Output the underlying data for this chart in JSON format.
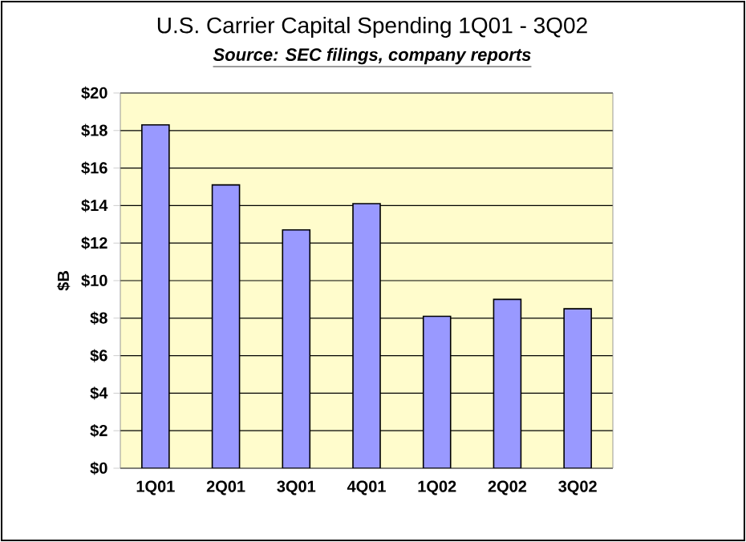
{
  "chart_data": {
    "type": "bar",
    "title": "U.S. Carrier Capital Spending 1Q01 - 3Q02",
    "subtitle": "Source: SEC filings, company reports",
    "ylabel": "$B",
    "categories": [
      "1Q01",
      "2Q01",
      "3Q01",
      "4Q01",
      "1Q02",
      "2Q02",
      "3Q02"
    ],
    "values": [
      18.3,
      15.1,
      12.7,
      14.1,
      8.1,
      9.0,
      8.5
    ],
    "color": "#9999ff",
    "ylim": [
      0,
      20
    ],
    "yticks": [
      {
        "value": 0,
        "label": "$0"
      },
      {
        "value": 2,
        "label": "$2"
      },
      {
        "value": 4,
        "label": "$4"
      },
      {
        "value": 6,
        "label": "$6"
      },
      {
        "value": 8,
        "label": "$8"
      },
      {
        "value": 10,
        "label": "$10"
      },
      {
        "value": 12,
        "label": "$12"
      },
      {
        "value": 14,
        "label": "$14"
      },
      {
        "value": 16,
        "label": "$16"
      },
      {
        "value": 18,
        "label": "$18"
      },
      {
        "value": 20,
        "label": "$20"
      }
    ],
    "grid": "y"
  }
}
